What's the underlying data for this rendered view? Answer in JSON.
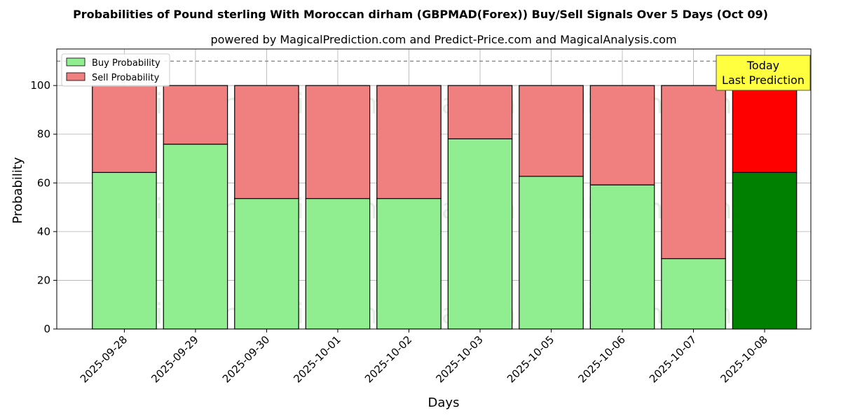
{
  "chart_data": {
    "type": "bar",
    "stacked": true,
    "title": "Probabilities of Pound sterling With Moroccan dirham (GBPMAD(Forex)) Buy/Sell Signals Over 5 Days (Oct 09)",
    "subtitle": "powered by MagicalPrediction.com and Predict-Price.com and MagicalAnalysis.com",
    "xlabel": "Days",
    "ylabel": "Probability",
    "ylim": [
      0,
      115
    ],
    "yticks": [
      0,
      20,
      40,
      60,
      80,
      100
    ],
    "grid": true,
    "legend_position": "top-left",
    "reference_line": 110,
    "categories": [
      "2025-09-28",
      "2025-09-29",
      "2025-09-30",
      "2025-10-01",
      "2025-10-02",
      "2025-10-03",
      "2025-10-05",
      "2025-10-06",
      "2025-10-07",
      "2025-10-08"
    ],
    "series": [
      {
        "name": "Buy Probability",
        "values": [
          64.3,
          75.9,
          53.6,
          53.6,
          53.6,
          78.1,
          62.7,
          59.2,
          28.9,
          64.3
        ],
        "color": "#90ee90",
        "highlight_color": "#008000"
      },
      {
        "name": "Sell Probability",
        "values": [
          35.7,
          24.1,
          46.4,
          46.4,
          46.4,
          21.9,
          37.3,
          40.8,
          71.1,
          35.7
        ],
        "color": "#f08080",
        "highlight_color": "#ff0000"
      }
    ],
    "highlight_index": 9,
    "annotation": {
      "lines": [
        "Today",
        "Last Prediction"
      ],
      "background": "#ffff40"
    },
    "watermarks": [
      "MagicalAnalysis.com",
      "MagicalPrediction.com"
    ]
  }
}
